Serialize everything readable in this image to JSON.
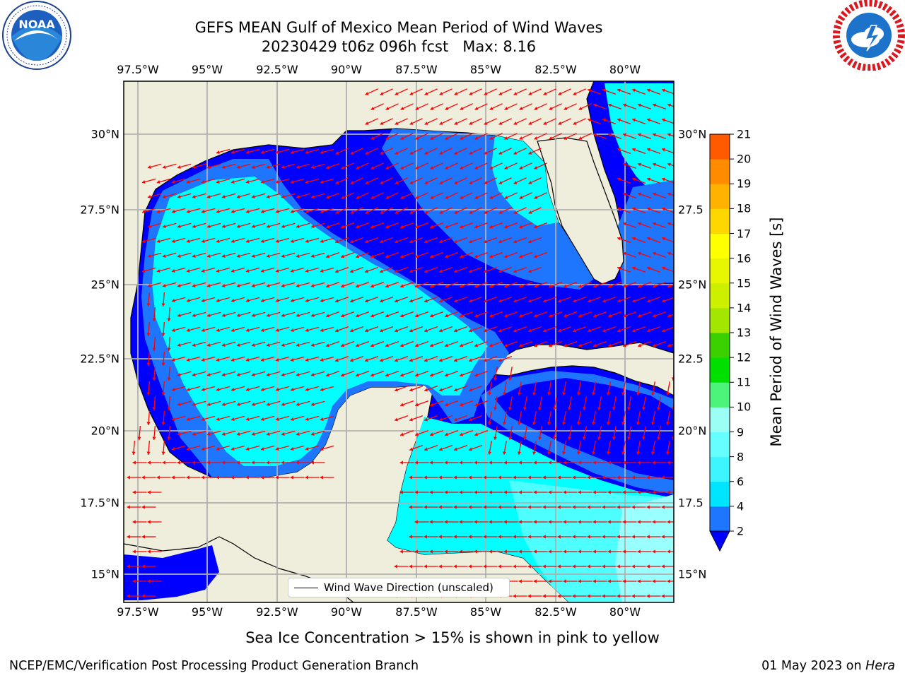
{
  "title_line1": "GEFS MEAN Gulf of Mexico Mean Period of Wind Waves",
  "title_line2": "20230429 t06z 096h fcst   Max: 8.16",
  "lon_ticks": [
    "97.5°W",
    "95°W",
    "92.5°W",
    "90°W",
    "87.5°W",
    "85°W",
    "82.5°W",
    "80°W"
  ],
  "lat_ticks": [
    "30°N",
    "27.5°N",
    "25°N",
    "22.5°N",
    "20°N",
    "17.5°N",
    "15°N"
  ],
  "lat_ticks_right": [
    "30°N",
    "27.5",
    "25°N",
    "22.5",
    "20°N",
    "17.5",
    "15°N"
  ],
  "legend_label": "Wind Wave Direction (unscaled)",
  "colorbar": {
    "label": "Mean Period of Wind Waves [s]",
    "levels": [
      "2",
      "4",
      "6",
      "8",
      "9",
      "10",
      "11",
      "12",
      "13",
      "14",
      "15",
      "16",
      "17",
      "18",
      "19",
      "20",
      "21"
    ],
    "colors": [
      "#1e76ff",
      "#00e5ff",
      "#3df5ff",
      "#66ffff",
      "#9bfff5",
      "#4cf47a",
      "#00e000",
      "#3bd100",
      "#a3e600",
      "#ccf000",
      "#e6f500",
      "#ffff00",
      "#ffd700",
      "#ffb300",
      "#ff8c00",
      "#ff5a00",
      "#ff2d00",
      "#ff0000"
    ],
    "under_color": "#0000ff"
  },
  "map_colors": {
    "land": "#efeddc",
    "deep": "#0000ff",
    "mid": "#1e76ff",
    "cyan": "#00ffff",
    "light": "#4dffff",
    "pale": "#99ffff",
    "arrow": "#ff0000",
    "grid": "#b0b0b0"
  },
  "icons": [
    "noaa-logo-icon",
    "nws-logo-icon"
  ],
  "sea_ice_note": "Sea Ice Concentration > 15% is shown in pink to yellow",
  "footer_left": "NCEP/EMC/Verification Post Processing Product Generation Branch",
  "footer_right_date": "01 May 2023 on ",
  "footer_right_host": "Hera"
}
